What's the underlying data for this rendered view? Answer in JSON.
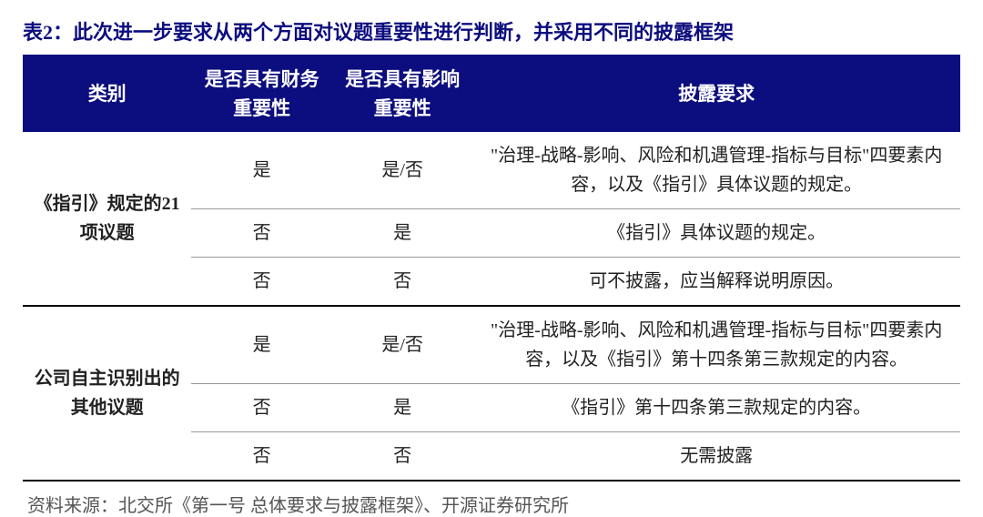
{
  "title": "表2：此次进一步要求从两个方面对议题重要性进行判断，并采用不同的披露框架",
  "title_color": "#0c0d7e",
  "header_bg": "#0c0d7e",
  "headers": {
    "category": "类别",
    "financial": "是否具有财务重要性",
    "impact": "是否具有影响重要性",
    "requirement": "披露要求"
  },
  "groups": [
    {
      "category": "《指引》规定的21 项议题",
      "rows": [
        {
          "fin": "是",
          "imp": "是/否",
          "req": "\"治理-战略-影响、风险和机遇管理-指标与目标\"四要素内容，以及《指引》具体议题的规定。"
        },
        {
          "fin": "否",
          "imp": "是",
          "req": "《指引》具体议题的规定。"
        },
        {
          "fin": "否",
          "imp": "否",
          "req": "可不披露，应当解释说明原因。"
        }
      ]
    },
    {
      "category": "公司自主识别出的其他议题",
      "rows": [
        {
          "fin": "是",
          "imp": "是/否",
          "req": "\"治理-战略-影响、风险和机遇管理-指标与目标\"四要素内容，以及《指引》第十四条第三款规定的内容。"
        },
        {
          "fin": "否",
          "imp": "是",
          "req": "《指引》第十四条第三款规定的内容。"
        },
        {
          "fin": "否",
          "imp": "否",
          "req": "无需披露"
        }
      ]
    }
  ],
  "source": "资料来源：北交所《第一号 总体要求与披露框架》、开源证券研究所"
}
